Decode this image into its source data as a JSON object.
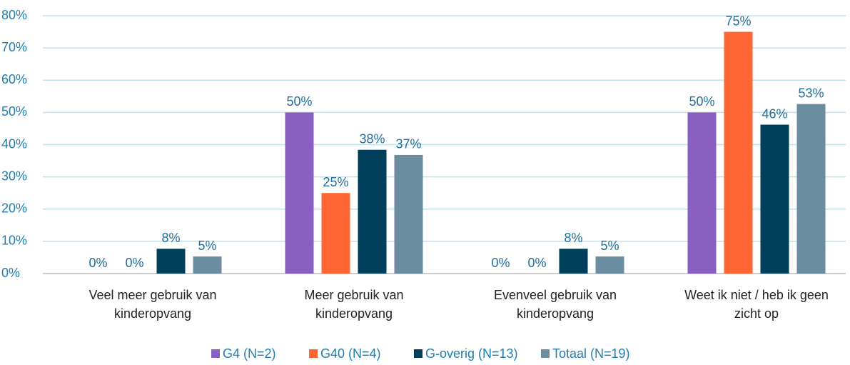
{
  "chart_data": {
    "type": "bar",
    "categories": [
      [
        "Veel meer gebruik van",
        "kinderopvang"
      ],
      [
        "Meer gebruik van",
        "kinderopvang"
      ],
      [
        "Evenveel gebruik van",
        "kinderopvang"
      ],
      [
        "Weet ik niet / heb ik geen",
        "zicht op"
      ]
    ],
    "series": [
      {
        "name": "G4 (N=2)",
        "color": "#8a5fc2",
        "values": [
          0,
          50,
          0,
          50
        ],
        "value_labels": [
          "0%",
          "50%",
          "0%",
          "50%"
        ]
      },
      {
        "name": "G40 (N=4)",
        "color": "#ff6633",
        "values": [
          0,
          25,
          0,
          75
        ],
        "value_labels": [
          "0%",
          "25%",
          "0%",
          "75%"
        ]
      },
      {
        "name": "G-overig (N=13)",
        "color": "#003f5c",
        "values": [
          7.7,
          38.4,
          7.7,
          46.2
        ],
        "value_labels": [
          "8%",
          "38%",
          "8%",
          "46%"
        ]
      },
      {
        "name": "Totaal (N=19)",
        "color": "#6a8da0",
        "values": [
          5.3,
          36.8,
          5.3,
          52.6
        ],
        "value_labels": [
          "5%",
          "37%",
          "5%",
          "53%"
        ]
      }
    ],
    "ylim": [
      0,
      80
    ],
    "yticks": [
      {
        "value": 0,
        "label": "0%"
      },
      {
        "value": 10,
        "label": "10%"
      },
      {
        "value": 20,
        "label": "20%"
      },
      {
        "value": 30,
        "label": "30%"
      },
      {
        "value": 40,
        "label": "40%"
      },
      {
        "value": 50,
        "label": "50%"
      },
      {
        "value": 60,
        "label": "60%"
      },
      {
        "value": 70,
        "label": "70%"
      },
      {
        "value": 80,
        "label": "80%"
      }
    ],
    "grid": true,
    "legend": "bottom"
  }
}
